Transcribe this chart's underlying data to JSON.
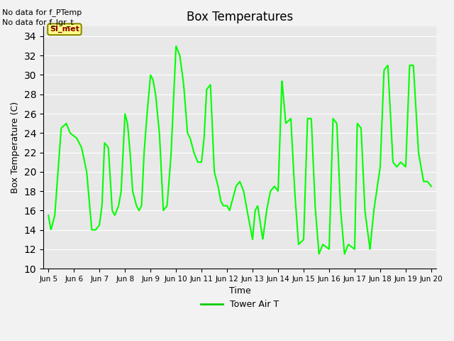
{
  "title": "Box Temperatures",
  "xlabel": "Time",
  "ylabel": "Box Temperature (C)",
  "ylim": [
    10,
    35
  ],
  "yticks": [
    10,
    12,
    14,
    16,
    18,
    20,
    22,
    24,
    26,
    28,
    30,
    32,
    34
  ],
  "line_color": "#00FF00",
  "line_width": 1.5,
  "bg_color": "#E8E8E8",
  "fig_color": "#F2F2F2",
  "no_data_text1": "No data for f_PTemp",
  "no_data_text2": "No data for f_lgr_t",
  "legend_label": "Tower Air T",
  "legend_line_color": "#00CC00",
  "si_met_text": "SI_met",
  "x_tick_labels": [
    "Jun 5",
    "Jun 6",
    "Jun 7",
    "Jun 8",
    "Jun 9",
    "Jun 10",
    "Jun 11",
    "Jun 12",
    "Jun 13",
    "Jun 14",
    "Jun 15",
    "Jun 16",
    "Jun 17",
    "Jun 18",
    "Jun 19",
    "Jun 20"
  ],
  "x_tick_positions": [
    5,
    6,
    7,
    8,
    9,
    10,
    11,
    12,
    13,
    14,
    15,
    16,
    17,
    18,
    19,
    20
  ],
  "xlim": [
    4.8,
    20.2
  ],
  "key_points_x": [
    5.0,
    5.1,
    5.25,
    5.5,
    5.7,
    5.85,
    6.1,
    6.3,
    6.5,
    6.7,
    6.85,
    7.0,
    7.1,
    7.2,
    7.35,
    7.5,
    7.6,
    7.75,
    7.85,
    8.0,
    8.1,
    8.2,
    8.3,
    8.45,
    8.55,
    8.65,
    8.75,
    8.85,
    9.0,
    9.1,
    9.2,
    9.35,
    9.5,
    9.65,
    9.8,
    10.0,
    10.15,
    10.3,
    10.45,
    10.55,
    10.7,
    10.85,
    11.0,
    11.1,
    11.2,
    11.35,
    11.5,
    11.65,
    11.75,
    11.85,
    12.0,
    12.1,
    12.2,
    12.35,
    12.5,
    12.65,
    12.75,
    13.0,
    13.1,
    13.2,
    13.4,
    13.55,
    13.7,
    13.85,
    14.0,
    14.15,
    14.3,
    14.5,
    14.65,
    14.8,
    15.0,
    15.15,
    15.3,
    15.45,
    15.6,
    15.75,
    16.0,
    16.15,
    16.3,
    16.45,
    16.6,
    16.75,
    17.0,
    17.1,
    17.25,
    17.4,
    17.6,
    17.75,
    18.0,
    18.15,
    18.3,
    18.5,
    18.65,
    18.8,
    19.0,
    19.15,
    19.3,
    19.5,
    19.7,
    19.85,
    20.0
  ],
  "key_points_y": [
    15.5,
    14.0,
    15.5,
    24.5,
    25.0,
    24.0,
    23.5,
    22.5,
    20.0,
    14.0,
    14.0,
    14.5,
    16.5,
    23.0,
    22.5,
    16.0,
    15.5,
    16.5,
    18.0,
    26.0,
    25.0,
    22.0,
    18.0,
    16.5,
    16.0,
    16.5,
    22.0,
    25.5,
    30.0,
    29.5,
    28.0,
    24.0,
    16.0,
    16.5,
    21.5,
    33.0,
    32.0,
    29.0,
    24.0,
    23.5,
    22.0,
    21.0,
    21.0,
    23.5,
    28.5,
    29.0,
    20.0,
    18.5,
    17.0,
    16.5,
    16.5,
    16.0,
    17.0,
    18.5,
    19.0,
    18.0,
    16.5,
    13.0,
    16.0,
    16.5,
    13.0,
    16.0,
    18.0,
    18.5,
    18.0,
    29.5,
    25.0,
    25.5,
    18.0,
    12.5,
    13.0,
    25.5,
    25.5,
    16.5,
    11.5,
    12.5,
    12.0,
    25.5,
    25.0,
    16.0,
    11.5,
    12.5,
    12.0,
    25.0,
    24.5,
    16.0,
    12.0,
    16.0,
    20.5,
    30.5,
    31.0,
    21.0,
    20.5,
    21.0,
    20.5,
    31.0,
    31.0,
    22.0,
    19.0,
    19.0,
    18.5
  ]
}
